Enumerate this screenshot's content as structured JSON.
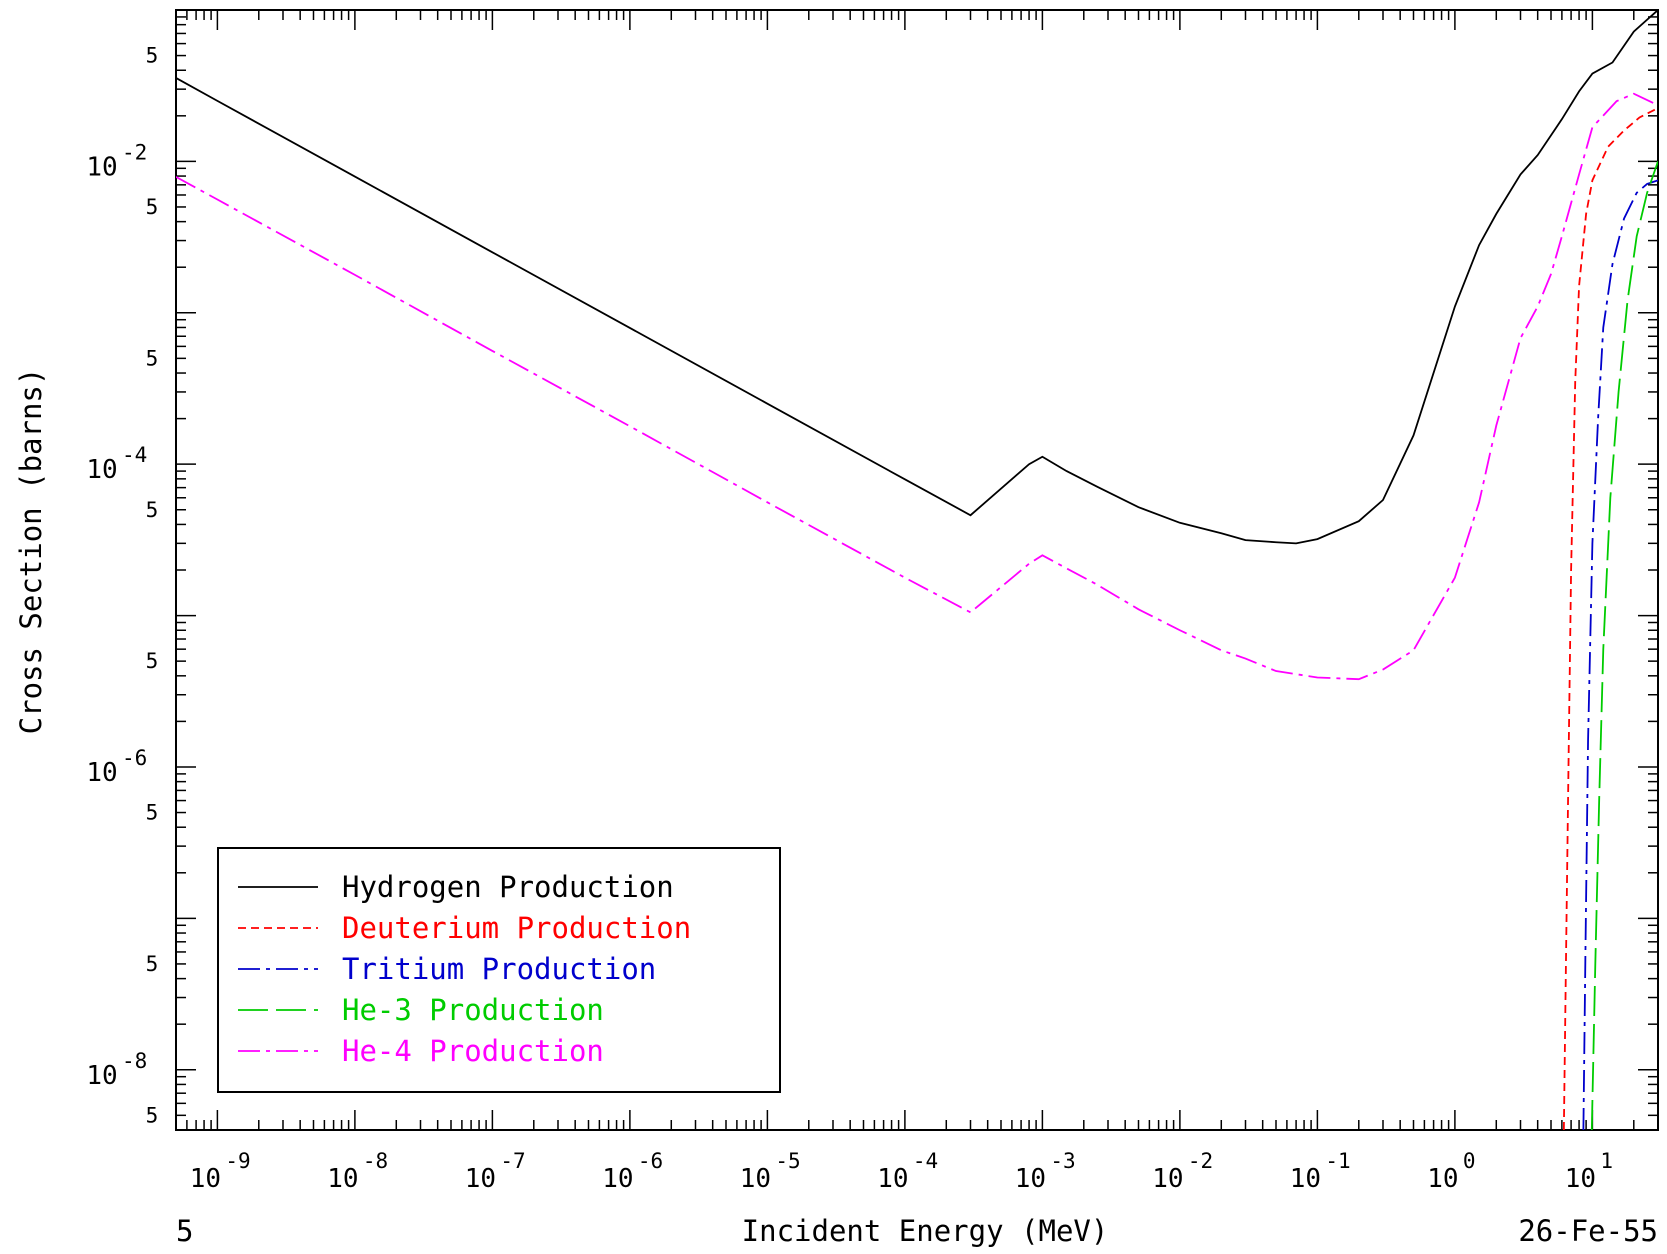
{
  "chart_data": {
    "type": "line",
    "title": "",
    "xlabel": "Incident Energy (MeV)",
    "ylabel": "Cross Section (barns)",
    "xscale": "log",
    "yscale": "log",
    "xlim": [
      5e-10,
      30
    ],
    "ylim": [
      4e-09,
      0.1
    ],
    "grid": false,
    "legend_position": "bottom-left",
    "footer_left": "5",
    "footer_right": "26-Fe-55",
    "x_ticks": [
      {
        "base": "10",
        "exp": "-9"
      },
      {
        "base": "10",
        "exp": "-8"
      },
      {
        "base": "10",
        "exp": "-7"
      },
      {
        "base": "10",
        "exp": "-6"
      },
      {
        "base": "10",
        "exp": "-5"
      },
      {
        "base": "10",
        "exp": "-4"
      },
      {
        "base": "10",
        "exp": "-3"
      },
      {
        "base": "10",
        "exp": "-2"
      },
      {
        "base": "10",
        "exp": "-1"
      },
      {
        "base": "10",
        "exp": "0"
      },
      {
        "base": "10",
        "exp": "1"
      }
    ],
    "y_ticks": [
      {
        "base": "10",
        "exp": "-2"
      },
      {
        "base": "10",
        "exp": "-4"
      },
      {
        "base": "10",
        "exp": "-6"
      },
      {
        "base": "10",
        "exp": "-8"
      }
    ],
    "y_minor_label": "5",
    "series": [
      {
        "name": "Hydrogen Production",
        "color": "#000000",
        "dash": "solid",
        "points": [
          [
            5e-10,
            0.0356
          ],
          [
            1e-09,
            0.0251
          ],
          [
            1e-08,
            0.00794
          ],
          [
            1e-07,
            0.00251
          ],
          [
            1e-06,
            0.000794
          ],
          [
            1e-05,
            0.000251
          ],
          [
            0.0001,
            7.94e-05
          ],
          [
            0.0003,
            4.6e-05
          ],
          [
            0.0008,
            0.0001
          ],
          [
            0.001,
            0.000112
          ],
          [
            0.0015,
            9e-05
          ],
          [
            0.0025,
            7.1e-05
          ],
          [
            0.005,
            5.2e-05
          ],
          [
            0.01,
            4.1e-05
          ],
          [
            0.02,
            3.5e-05
          ],
          [
            0.03,
            3.15e-05
          ],
          [
            0.05,
            3.05e-05
          ],
          [
            0.07,
            3e-05
          ],
          [
            0.1,
            3.2e-05
          ],
          [
            0.2,
            4.2e-05
          ],
          [
            0.3,
            5.8e-05
          ],
          [
            0.5,
            0.000155
          ],
          [
            1.0,
            0.0011
          ],
          [
            1.5,
            0.0028
          ],
          [
            2.0,
            0.0045
          ],
          [
            3.0,
            0.0082
          ],
          [
            4.0,
            0.011
          ],
          [
            6.0,
            0.019
          ],
          [
            8.0,
            0.029
          ],
          [
            10.0,
            0.038
          ],
          [
            14.0,
            0.045
          ],
          [
            20.0,
            0.072
          ],
          [
            30.0,
            0.1
          ]
        ]
      },
      {
        "name": "Deuterium Production",
        "color": "#ff0000",
        "dash": "dashed",
        "points": [
          [
            6.2,
            4e-09
          ],
          [
            6.4,
            4e-08
          ],
          [
            6.7,
            1e-06
          ],
          [
            7.0,
            2e-05
          ],
          [
            7.5,
            0.00035
          ],
          [
            8.0,
            0.0015
          ],
          [
            9.0,
            0.0045
          ],
          [
            10.0,
            0.0075
          ],
          [
            13.0,
            0.0125
          ],
          [
            17.0,
            0.016
          ],
          [
            22.0,
            0.0195
          ],
          [
            30.0,
            0.0225
          ]
        ]
      },
      {
        "name": "Tritium Production",
        "color": "#0000cc",
        "dash": "dashdot",
        "points": [
          [
            8.6,
            4e-09
          ],
          [
            8.9,
            6e-08
          ],
          [
            9.3,
            1.5e-06
          ],
          [
            10.0,
            3e-05
          ],
          [
            11.0,
            0.0002
          ],
          [
            12.0,
            0.0008
          ],
          [
            14.0,
            0.0021
          ],
          [
            17.0,
            0.0042
          ],
          [
            21.0,
            0.0062
          ],
          [
            25.0,
            0.0071
          ],
          [
            30.0,
            0.0075
          ]
        ]
      },
      {
        "name": "He-3 Production",
        "color": "#00cc00",
        "dash": "longdash",
        "points": [
          [
            9.9,
            4e-09
          ],
          [
            10.5,
            5e-08
          ],
          [
            11.2,
            6e-07
          ],
          [
            12.0,
            6e-06
          ],
          [
            13.5,
            6e-05
          ],
          [
            15.5,
            0.0003
          ],
          [
            18.0,
            0.0012
          ],
          [
            21.0,
            0.0032
          ],
          [
            25.0,
            0.0062
          ],
          [
            30.0,
            0.01
          ]
        ]
      },
      {
        "name": "He-4 Production",
        "color": "#ff00ff",
        "dash": "dashdot",
        "points": [
          [
            5e-10,
            0.0079
          ],
          [
            1e-09,
            0.0056
          ],
          [
            1e-08,
            0.00178
          ],
          [
            1e-07,
            0.00056
          ],
          [
            1e-06,
            0.000178
          ],
          [
            1e-05,
            5.6e-05
          ],
          [
            0.0001,
            1.78e-05
          ],
          [
            0.0003,
            1.05e-05
          ],
          [
            0.0008,
            2.2e-05
          ],
          [
            0.001,
            2.5e-05
          ],
          [
            0.0015,
            2.05e-05
          ],
          [
            0.0025,
            1.6e-05
          ],
          [
            0.005,
            1.1e-05
          ],
          [
            0.01,
            8e-06
          ],
          [
            0.02,
            5.9e-06
          ],
          [
            0.03,
            5.2e-06
          ],
          [
            0.05,
            4.3e-06
          ],
          [
            0.1,
            3.9e-06
          ],
          [
            0.2,
            3.8e-06
          ],
          [
            0.3,
            4.4e-06
          ],
          [
            0.5,
            5.9e-06
          ],
          [
            1.0,
            1.78e-05
          ],
          [
            1.5,
            5.6e-05
          ],
          [
            2.0,
            0.00018
          ],
          [
            3.0,
            0.00068
          ],
          [
            4.0,
            0.0011
          ],
          [
            5.0,
            0.0018
          ],
          [
            6.0,
            0.0032
          ],
          [
            8.0,
            0.0082
          ],
          [
            10.0,
            0.0168
          ],
          [
            15.0,
            0.025
          ],
          [
            20.0,
            0.028
          ],
          [
            30.0,
            0.0235
          ]
        ]
      }
    ]
  }
}
